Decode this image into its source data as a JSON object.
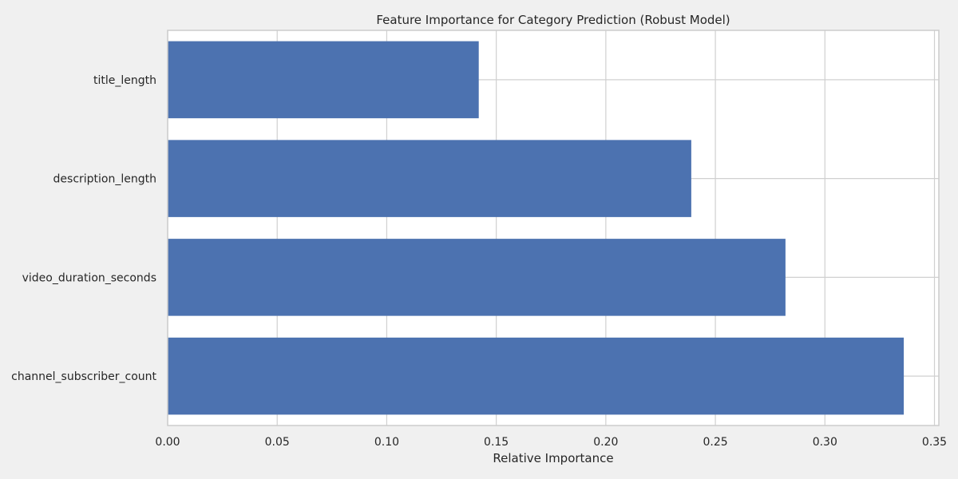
{
  "chart_data": {
    "type": "bar",
    "orientation": "horizontal",
    "title": "Feature Importance for Category Prediction (Robust Model)",
    "xlabel": "Relative Importance",
    "ylabel": "",
    "categories": [
      "title_length",
      "description_length",
      "video_duration_seconds",
      "channel_subscriber_count"
    ],
    "values": [
      0.142,
      0.239,
      0.282,
      0.336
    ],
    "xlim": [
      0.0,
      0.352
    ],
    "xticks": [
      0.0,
      0.05,
      0.1,
      0.15,
      0.2,
      0.25,
      0.3,
      0.35
    ],
    "xtick_labels": [
      "0.00",
      "0.05",
      "0.10",
      "0.15",
      "0.20",
      "0.25",
      "0.30",
      "0.35"
    ],
    "grid": true,
    "colors": {
      "bar": "#4c72b0",
      "background": "#f0f0f0",
      "plot_area": "#ffffff",
      "grid": "#d0d0d0",
      "frame": "#cccccc",
      "text": "#262626"
    }
  }
}
